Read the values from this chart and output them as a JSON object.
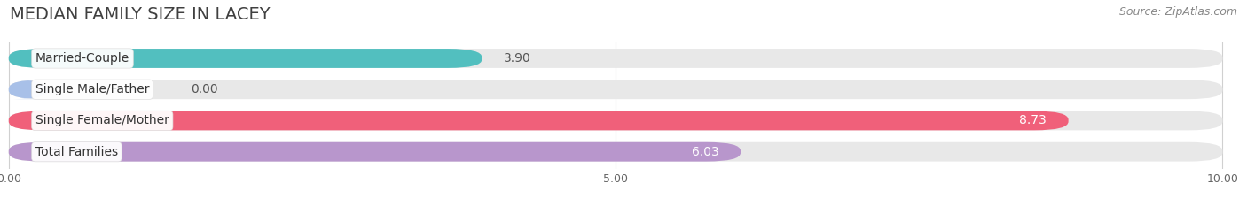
{
  "title": "MEDIAN FAMILY SIZE IN LACEY",
  "source": "Source: ZipAtlas.com",
  "categories": [
    "Married-Couple",
    "Single Male/Father",
    "Single Female/Mother",
    "Total Families"
  ],
  "values": [
    3.9,
    0.0,
    8.73,
    6.03
  ],
  "bar_colors": [
    "#52BFBF",
    "#A8C0E8",
    "#F0607A",
    "#B896CC"
  ],
  "bar_height": 0.62,
  "xlim": [
    0,
    10
  ],
  "xtick_labels": [
    "0.00",
    "5.00",
    "10.00"
  ],
  "background_color": "#ffffff",
  "bar_bg_color": "#e8e8e8",
  "title_fontsize": 14,
  "label_fontsize": 10,
  "value_fontsize": 10,
  "source_fontsize": 9,
  "grid_color": "#d0d0d0"
}
